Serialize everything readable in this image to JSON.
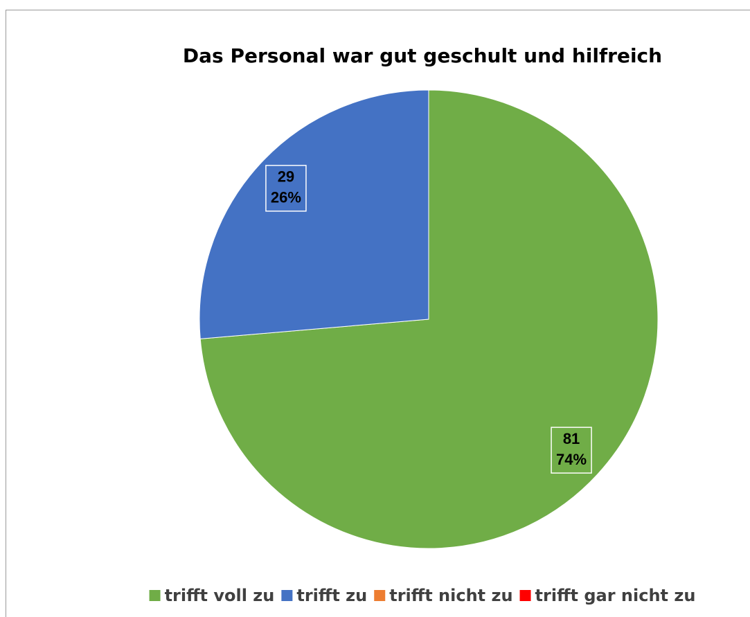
{
  "chart_data": {
    "type": "pie",
    "title": "Das Personal war gut geschult und hilfreich",
    "categories": [
      "trifft voll zu",
      "trifft zu",
      "trifft nicht zu",
      "trifft gar nicht zu"
    ],
    "values": [
      81,
      29,
      0,
      0
    ],
    "percent_labels": [
      "74%",
      "26%",
      null,
      null
    ],
    "colors": [
      "#70ad47",
      "#4472c4",
      "#ed7d31",
      "#ff0000"
    ],
    "legend": "bottom"
  }
}
